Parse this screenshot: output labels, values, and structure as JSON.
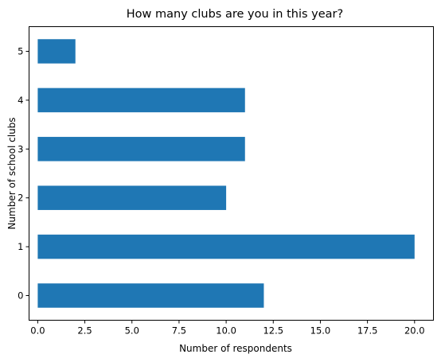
{
  "chart_data": {
    "type": "bar",
    "orientation": "horizontal",
    "title": "How many clubs are you in this year?",
    "xlabel": "Number of respondents",
    "ylabel": "Number of school clubs",
    "categories": [
      "0",
      "1",
      "2",
      "3",
      "4",
      "5"
    ],
    "values": [
      12,
      20,
      10,
      11,
      11,
      2
    ],
    "xlim": [
      0,
      21
    ],
    "xticks": [
      "0.0",
      "2.5",
      "5.0",
      "7.5",
      "10.0",
      "12.5",
      "15.0",
      "17.5",
      "20.0"
    ],
    "grid": false,
    "bar_color": "#1f77b4"
  }
}
